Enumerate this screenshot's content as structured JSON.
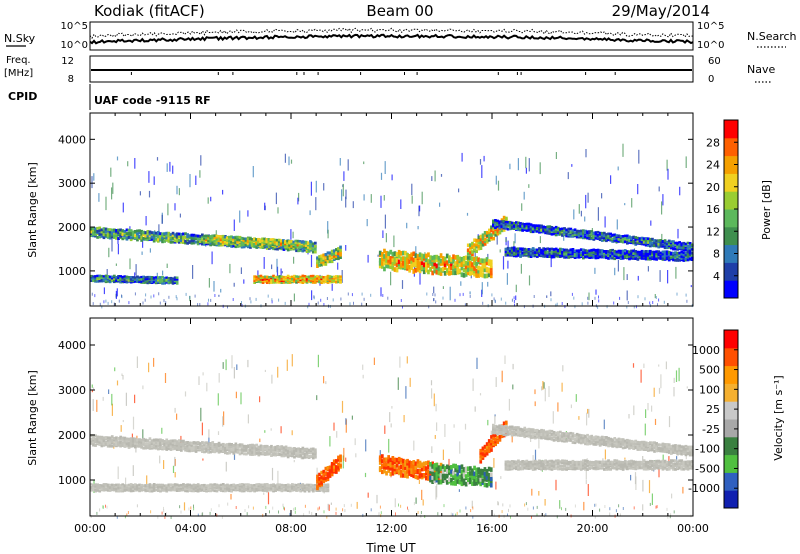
{
  "header": {
    "station": "Kodiak (fitACF)",
    "beam": "Beam 00",
    "date": "29/May/2014"
  },
  "strip_panels": {
    "nsky": {
      "label": "N.Sky",
      "ticks": [
        "10^5",
        "10^0"
      ]
    },
    "nsearch": {
      "label": "N.Search",
      "ticks": [
        "10^5",
        "10^0"
      ]
    },
    "freq": {
      "label_line1": "Freq.",
      "label_line2": "[MHz]",
      "ticks": [
        "12",
        "8"
      ]
    },
    "nave": {
      "label": "Nave",
      "ticks": [
        "60",
        "0"
      ]
    },
    "cpid": {
      "label": "CPID",
      "text": "UAF code -9115 RF"
    }
  },
  "colors": {
    "power": [
      "#0000ff",
      "#1f3fa8",
      "#2f7ab8",
      "#3f8f4f",
      "#5cb85c",
      "#9acd32",
      "#f0d020",
      "#f5a000",
      "#ff6000",
      "#ff0000"
    ],
    "velocity": [
      "#ff0000",
      "#ff5000",
      "#ff9900",
      "#f5b030",
      "#c8c8c8",
      "#a8a8a8",
      "#3a8040",
      "#50c040",
      "#3060c0",
      "#1020b0"
    ],
    "accent_gray": "#c0c0b8"
  },
  "chart_data": [
    {
      "type": "heatmap",
      "name": "power-panel",
      "ylabel": "Slant Range [km]",
      "ylim": [
        200,
        4600
      ],
      "yticks": [
        1000,
        2000,
        3000,
        4000
      ],
      "colorbar": {
        "label": "Power [dB]",
        "range": [
          0,
          32
        ],
        "ticks": [
          4,
          8,
          12,
          16,
          20,
          24,
          28
        ]
      },
      "echo_bands": [
        {
          "t0": 0.0,
          "t1": 9.0,
          "r0": 1850,
          "r1": 1500,
          "width": 220,
          "level": 0.45
        },
        {
          "t0": 4.5,
          "t1": 8.8,
          "r0": 1700,
          "r1": 1550,
          "width": 180,
          "level": 0.62
        },
        {
          "t0": 0.0,
          "t1": 3.5,
          "r0": 800,
          "r1": 750,
          "width": 150,
          "level": 0.35
        },
        {
          "t0": 6.5,
          "t1": 10.0,
          "r0": 780,
          "r1": 780,
          "width": 160,
          "level": 0.75
        },
        {
          "t0": 9.0,
          "t1": 10.0,
          "r0": 1150,
          "r1": 1400,
          "width": 250,
          "level": 0.6
        },
        {
          "t0": 11.5,
          "t1": 16.0,
          "r0": 1200,
          "r1": 1000,
          "width": 420,
          "level": 0.72
        },
        {
          "t0": 15.0,
          "t1": 16.6,
          "r0": 1400,
          "r1": 2100,
          "width": 300,
          "level": 0.7
        },
        {
          "t0": 16.0,
          "t1": 24.0,
          "r0": 2050,
          "r1": 1500,
          "width": 180,
          "level": 0.3
        },
        {
          "t0": 16.5,
          "t1": 24.0,
          "r0": 1400,
          "r1": 1300,
          "width": 200,
          "level": 0.25
        }
      ]
    },
    {
      "type": "heatmap",
      "name": "velocity-panel",
      "ylabel": "Slant Range [km]",
      "xlabel": "Time UT",
      "ylim": [
        200,
        4600
      ],
      "yticks": [
        1000,
        2000,
        3000,
        4000
      ],
      "xlim": [
        0,
        24
      ],
      "xticks": [
        "00:00",
        "04:00",
        "08:00",
        "12:00",
        "16:00",
        "20:00",
        "00:00"
      ],
      "colorbar": {
        "label": "Velocity [m s⁻¹]",
        "ticks": [
          "1000",
          "500",
          "100",
          "25",
          "-25",
          "-100",
          "-500",
          "-1000"
        ]
      },
      "echo_bands": [
        {
          "t0": 0.0,
          "t1": 9.0,
          "r0": 1850,
          "r1": 1550,
          "width": 220,
          "level": 0.45
        },
        {
          "t0": 0.0,
          "t1": 9.5,
          "r0": 800,
          "r1": 800,
          "width": 160,
          "level": 0.45
        },
        {
          "t0": 9.0,
          "t1": 10.0,
          "r0": 900,
          "r1": 1400,
          "width": 300,
          "level": 0.1
        },
        {
          "t0": 11.5,
          "t1": 14.0,
          "r0": 1300,
          "r1": 1100,
          "width": 380,
          "level": 0.15
        },
        {
          "t0": 13.5,
          "t1": 16.0,
          "r0": 1100,
          "r1": 1000,
          "width": 400,
          "level": 0.8
        },
        {
          "t0": 15.5,
          "t1": 16.6,
          "r0": 1500,
          "r1": 2200,
          "width": 300,
          "level": 0.1
        },
        {
          "t0": 16.0,
          "t1": 24.0,
          "r0": 2100,
          "r1": 1600,
          "width": 200,
          "level": 0.45
        },
        {
          "t0": 16.5,
          "t1": 24.0,
          "r0": 1300,
          "r1": 1300,
          "width": 200,
          "level": 0.5
        }
      ]
    }
  ]
}
